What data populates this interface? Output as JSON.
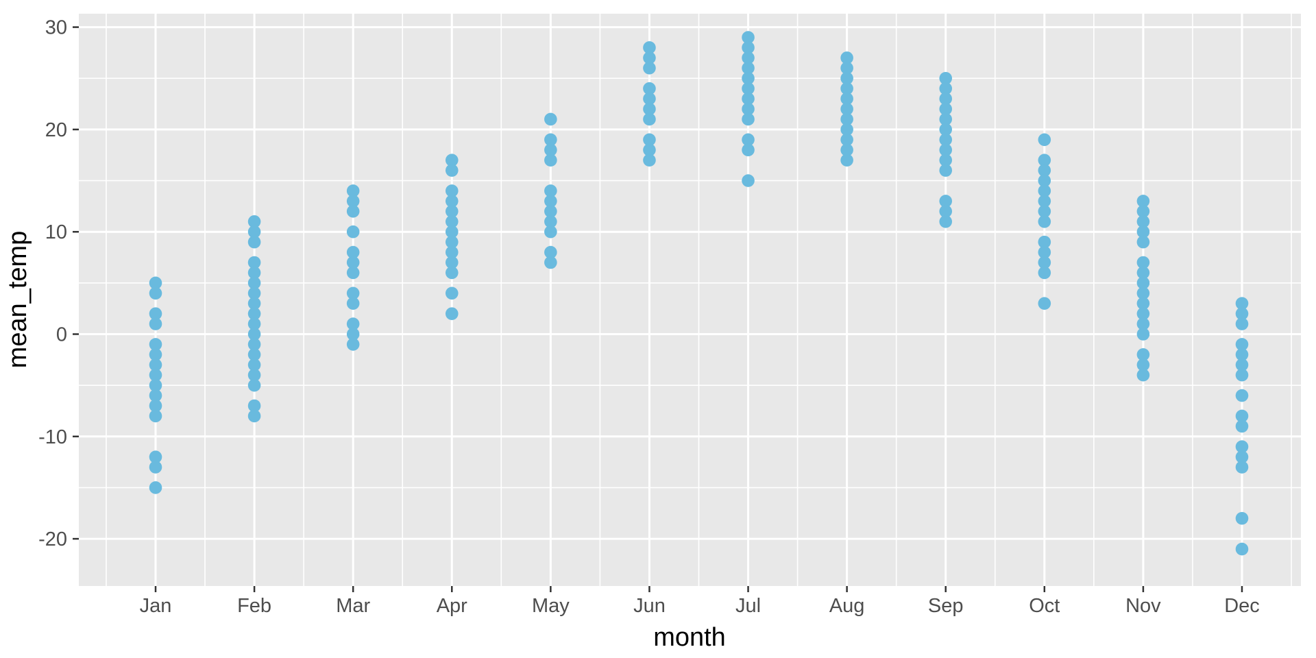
{
  "chart_data": {
    "type": "scatter",
    "title": "",
    "xlabel": "month",
    "ylabel": "mean_temp",
    "categories": [
      "Jan",
      "Feb",
      "Mar",
      "Apr",
      "May",
      "Jun",
      "Jul",
      "Aug",
      "Sep",
      "Oct",
      "Nov",
      "Dec"
    ],
    "series": [
      {
        "name": "Jan",
        "values": [
          5,
          4,
          2,
          1,
          -1,
          -2,
          -3,
          -4,
          -5,
          -6,
          -7,
          -8,
          -12,
          -13,
          -15
        ]
      },
      {
        "name": "Feb",
        "values": [
          11,
          10,
          9,
          7,
          6,
          5,
          4,
          3,
          2,
          1,
          0,
          -1,
          -2,
          -3,
          -4,
          -5,
          -7,
          -8
        ]
      },
      {
        "name": "Mar",
        "values": [
          14,
          13,
          12,
          10,
          8,
          7,
          6,
          4,
          3,
          1,
          0,
          -1
        ]
      },
      {
        "name": "Apr",
        "values": [
          17,
          16,
          14,
          13,
          12,
          11,
          10,
          9,
          8,
          7,
          6,
          4,
          2
        ]
      },
      {
        "name": "May",
        "values": [
          21,
          19,
          18,
          17,
          14,
          13,
          12,
          11,
          10,
          8,
          7
        ]
      },
      {
        "name": "Jun",
        "values": [
          28,
          27,
          26,
          24,
          23,
          22,
          21,
          19,
          18,
          17
        ]
      },
      {
        "name": "Jul",
        "values": [
          29,
          28,
          27,
          26,
          25,
          24,
          23,
          22,
          21,
          19,
          18,
          15
        ]
      },
      {
        "name": "Aug",
        "values": [
          27,
          26,
          25,
          24,
          23,
          22,
          21,
          20,
          19,
          18,
          17
        ]
      },
      {
        "name": "Sep",
        "values": [
          25,
          24,
          23,
          22,
          21,
          20,
          19,
          18,
          17,
          16,
          13,
          12,
          11
        ]
      },
      {
        "name": "Oct",
        "values": [
          19,
          17,
          16,
          15,
          14,
          13,
          12,
          11,
          9,
          8,
          7,
          6,
          3
        ]
      },
      {
        "name": "Nov",
        "values": [
          13,
          12,
          11,
          10,
          9,
          7,
          6,
          5,
          4,
          3,
          2,
          1,
          0,
          -2,
          -3,
          -4
        ]
      },
      {
        "name": "Dec",
        "values": [
          3,
          2,
          1,
          -1,
          -2,
          -3,
          -4,
          -6,
          -8,
          -9,
          -11,
          -12,
          -13,
          -18,
          -21
        ]
      }
    ],
    "y_major_ticks": [
      30,
      20,
      10,
      0,
      -10,
      -20
    ],
    "y_major_tick_labels": [
      "30",
      "20",
      "10",
      "0",
      "-10",
      "-20"
    ],
    "y_minor_ticks": [
      25,
      15,
      5,
      -5,
      -15
    ],
    "ylim": [
      -24.6,
      31.3
    ],
    "grid": "on",
    "legend": "none",
    "colors": {
      "point": "#69BADE",
      "panel_background": "#E8E8E8",
      "gridline": "#FFFFFF",
      "tick_mark": "#333333",
      "tick_text": "#4D4D4D",
      "axis_title_text": "#000000"
    }
  }
}
